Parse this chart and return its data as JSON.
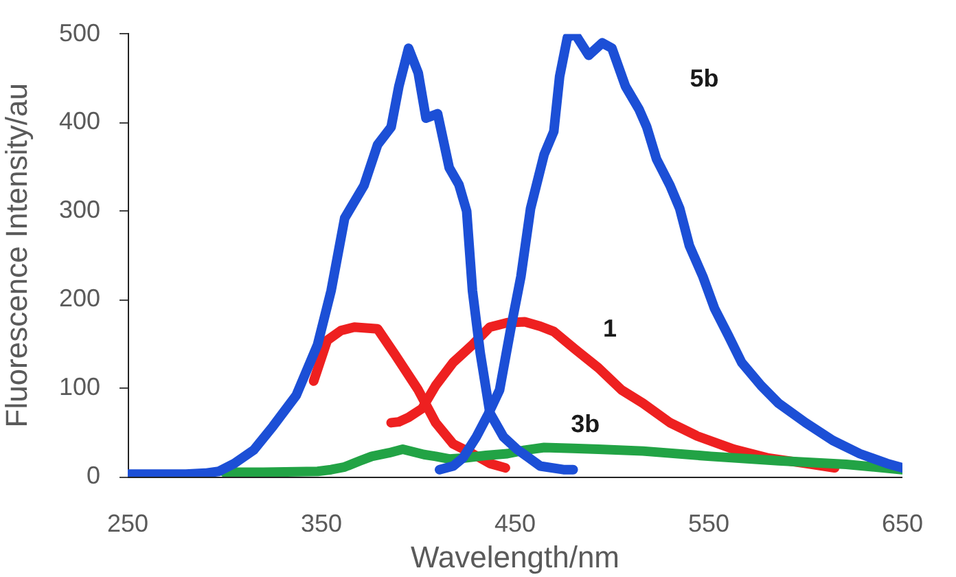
{
  "chart_data": {
    "type": "line",
    "xlabel": "Wavelength/nm",
    "ylabel": "Fluorescence Intensity/au",
    "xlim": [
      250,
      650
    ],
    "xticks": [
      250,
      350,
      450,
      550,
      650
    ],
    "ylim": [
      0,
      500
    ],
    "yticks": [
      0,
      100,
      200,
      300,
      400,
      500
    ],
    "grid": false,
    "legend": false,
    "series": [
      {
        "color": "#1c4fd6",
        "x": [
          250,
          260,
          270,
          280,
          290,
          297,
          305,
          315,
          325,
          337,
          348,
          355,
          362,
          372,
          379,
          386,
          390,
          395,
          400,
          404,
          410,
          416,
          421,
          425,
          428,
          432,
          437,
          444,
          451,
          463,
          475,
          480
        ],
        "values": [
          3,
          3,
          3,
          3,
          4,
          6,
          15,
          30,
          57,
          92,
          149,
          210,
          292,
          329,
          375,
          395,
          441,
          484,
          456,
          405,
          410,
          349,
          330,
          300,
          210,
          140,
          72,
          45,
          31,
          12,
          8,
          8
        ]
      },
      {
        "name": "5b",
        "color": "#1c4fd6",
        "x": [
          411,
          418,
          423,
          430,
          436,
          442,
          448,
          453,
          458,
          465,
          470,
          473,
          477,
          481,
          488,
          495,
          500,
          507,
          514,
          518,
          523,
          530,
          535,
          540,
          547,
          553,
          560,
          567,
          577,
          586,
          600,
          614,
          628,
          642,
          650
        ],
        "values": [
          8,
          12,
          21,
          45,
          70,
          98,
          170,
          226,
          303,
          364,
          390,
          452,
          496,
          500,
          476,
          490,
          484,
          441,
          415,
          395,
          359,
          329,
          303,
          261,
          226,
          190,
          160,
          129,
          103,
          83,
          61,
          41,
          26,
          15,
          10
        ]
      },
      {
        "name": "3b",
        "color": "#22a345",
        "x": [
          300,
          320,
          348,
          355,
          362,
          370,
          376,
          385,
          392,
          403,
          409,
          416,
          423,
          435,
          446,
          455,
          465,
          480,
          493,
          516,
          551,
          586,
          621,
          650
        ],
        "values": [
          5,
          5,
          6,
          8,
          11,
          18,
          23,
          27,
          31,
          25,
          23,
          20,
          21,
          24,
          26,
          30,
          33,
          32,
          31,
          29,
          23,
          18,
          14,
          8
        ]
      },
      {
        "color": "#ee2020",
        "x": [
          346,
          353,
          360,
          367,
          373,
          379,
          388,
          400,
          409,
          418,
          428,
          437,
          445
        ],
        "values": [
          108,
          154,
          165,
          169,
          168,
          167,
          138,
          98,
          61,
          37,
          26,
          15,
          10
        ]
      },
      {
        "name": "1",
        "color": "#ee2020",
        "x": [
          386,
          390,
          395,
          402,
          409,
          418,
          428,
          437,
          446,
          455,
          463,
          470,
          481,
          493,
          505,
          516,
          530,
          544,
          563,
          581,
          600,
          615
        ],
        "values": [
          61,
          62,
          67,
          77,
          103,
          129,
          149,
          169,
          174,
          175,
          170,
          164,
          144,
          123,
          98,
          83,
          61,
          46,
          31,
          21,
          15,
          10
        ]
      }
    ]
  }
}
